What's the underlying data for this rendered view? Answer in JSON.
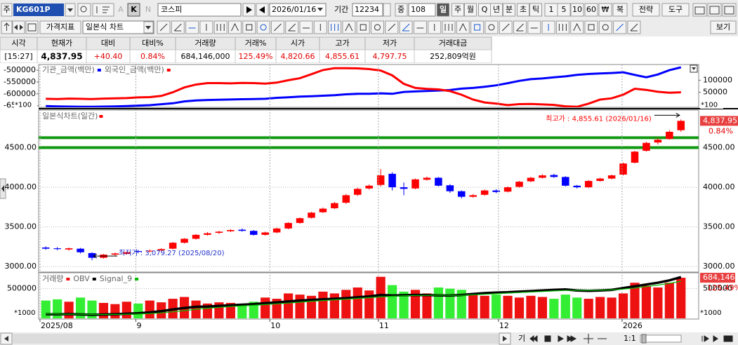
{
  "toolbar": {
    "symbol_prefix": "주",
    "symbol_code": "KG601P",
    "market_keys": [
      "A",
      "K",
      "N"
    ],
    "index_name": "코스피",
    "date": "2026/01/16",
    "period_label": "기간",
    "period_value": "12234",
    "overlap_label": "중",
    "overlap_value": "108",
    "intervals": [
      "일",
      "주",
      "월",
      "Q",
      "년",
      "분",
      "초",
      "틱",
      "1",
      "5",
      "10",
      "60"
    ],
    "buttons": [
      "₩",
      "복",
      "전략",
      "도구"
    ]
  },
  "toolbar2": {
    "indicator_button": "가격지표",
    "chart_type": "일본식 차트",
    "view_button": "보기"
  },
  "quote_table": {
    "headers": [
      "시각",
      "현재가",
      "대비",
      "대비%",
      "거래량",
      "거래%",
      "시가",
      "고가",
      "저가",
      "거래대금"
    ],
    "values": [
      "[15:27]",
      "4,837.95",
      "+40.40",
      "0.84%",
      "684,146,000",
      "125.49%",
      "4,820.66",
      "4,855.61",
      "4,797.75",
      "252,809억원"
    ]
  },
  "chart_data": [
    {
      "type": "line",
      "xlim": [
        0,
        56
      ],
      "ylim": [
        -657000,
        -476000
      ],
      "yticks": [
        -500000,
        -550000,
        -600000,
        -650000
      ],
      "y2lim": [
        -12000,
        165000
      ],
      "y2ticks": [
        50000,
        100000
      ],
      "unit_label": "*100",
      "grid": false,
      "series": [
        {
          "name": "기관_금액(백만)",
          "color": "#0000ff",
          "values": [
            -652000,
            -653000,
            -654000,
            -655000,
            -655000,
            -654000,
            -653000,
            -652000,
            -650000,
            -648000,
            -644000,
            -640000,
            -632000,
            -628000,
            -626000,
            -625000,
            -624000,
            -623000,
            -622000,
            -621000,
            -617000,
            -615000,
            -612000,
            -610000,
            -608000,
            -606000,
            -602000,
            -600000,
            -600000,
            -598000,
            -600000,
            -592000,
            -590000,
            -588000,
            -586000,
            -584000,
            -578000,
            -575000,
            -570000,
            -564000,
            -555000,
            -545000,
            -538000,
            -535000,
            -530000,
            -526000,
            -520000,
            -516000,
            -514000,
            -512000,
            -509000,
            -520000,
            -530000,
            -518000,
            -500000,
            -488000
          ]
        },
        {
          "name": "외국인_금액(백만)",
          "color": "#ff0000",
          "axis": "y2",
          "values": [
            23000,
            22000,
            24000,
            23000,
            22000,
            24000,
            25000,
            26000,
            29000,
            30000,
            35000,
            50000,
            70000,
            82000,
            88000,
            88000,
            87000,
            89000,
            88000,
            86000,
            90000,
            100000,
            108000,
            125000,
            142000,
            150000,
            150000,
            149000,
            146000,
            140000,
            120000,
            85000,
            68000,
            64000,
            62000,
            55000,
            40000,
            20000,
            8000,
            3000,
            -3000,
            1000,
            2000,
            0,
            -2000,
            -8000,
            -10000,
            3000,
            20000,
            25000,
            40000,
            65000,
            60000,
            52000,
            48000,
            50000
          ]
        }
      ]
    },
    {
      "type": "candlestick",
      "title": "일본식차트(일간)",
      "title_color": "#ff0000",
      "xlim": [
        0,
        56
      ],
      "ylim": [
        2930,
        4965
      ],
      "yticks": [
        {
          "value": 3000,
          "label": "3000.00"
        },
        {
          "value": 3500,
          "label": "3500.00"
        },
        {
          "value": 4000,
          "label": "4000.00"
        },
        {
          "value": 4500,
          "label": "4500.00"
        }
      ],
      "grid": true,
      "up_color": "#ff0000",
      "down_color": "#0000ff",
      "open": [
        3240,
        3230,
        3215,
        3225,
        3170,
        3110,
        3150,
        3160,
        3195,
        3190,
        3205,
        3225,
        3300,
        3350,
        3400,
        3425,
        3445,
        3465,
        3450,
        3400,
        3430,
        3480,
        3550,
        3615,
        3685,
        3735,
        3805,
        3905,
        3985,
        4030,
        4170,
        4000,
        3985,
        4095,
        4120,
        4025,
        3950,
        3880,
        3905,
        3960,
        3945,
        4005,
        4075,
        4120,
        4155,
        4130,
        4020,
        4000,
        4080,
        4110,
        4160,
        4310,
        4460,
        4565,
        4610,
        4720
      ],
      "high": [
        3255,
        3245,
        3240,
        3235,
        3180,
        3160,
        3175,
        3190,
        3210,
        3215,
        3230,
        3310,
        3360,
        3410,
        3435,
        3450,
        3470,
        3480,
        3460,
        3440,
        3490,
        3560,
        3620,
        3690,
        3745,
        3815,
        3915,
        3995,
        4035,
        4230,
        4190,
        4060,
        4110,
        4135,
        4130,
        4040,
        3960,
        3915,
        3970,
        3975,
        4010,
        4080,
        4130,
        4165,
        4170,
        4140,
        4030,
        4090,
        4120,
        4160,
        4310,
        4460,
        4575,
        4620,
        4720,
        4855.61
      ],
      "low": [
        3210,
        3205,
        3200,
        3165,
        3079.27,
        3100,
        3135,
        3150,
        3170,
        3180,
        3195,
        3215,
        3290,
        3340,
        3390,
        3410,
        3435,
        3440,
        3390,
        3390,
        3420,
        3470,
        3540,
        3605,
        3675,
        3725,
        3790,
        3890,
        3970,
        4010,
        3960,
        3900,
        3975,
        4085,
        4010,
        3930,
        3860,
        3870,
        3895,
        3925,
        3935,
        3995,
        4065,
        4110,
        4120,
        4010,
        3985,
        3990,
        4070,
        4100,
        4150,
        4300,
        4450,
        4540,
        4600,
        4700
      ],
      "close": [
        3225,
        3220,
        3230,
        3180,
        3110,
        3150,
        3165,
        3180,
        3185,
        3200,
        3220,
        3300,
        3350,
        3400,
        3420,
        3440,
        3460,
        3450,
        3400,
        3430,
        3480,
        3550,
        3610,
        3680,
        3730,
        3800,
        3900,
        3980,
        4020,
        4150,
        4000,
        3980,
        4100,
        4120,
        4020,
        3950,
        3880,
        3900,
        3960,
        3940,
        4000,
        4070,
        4120,
        4150,
        4130,
        4020,
        4000,
        4080,
        4110,
        4150,
        4300,
        4450,
        4560,
        4600,
        4700,
        4837.95
      ],
      "hlines": [
        4625,
        4500
      ],
      "hline_color": "#119911",
      "annotations": [
        "최고가 : 4,855.61 (2026/01/16)",
        "최저가 : 3,079.27 (2025/08/20)"
      ],
      "annotation_color": "#ff0000",
      "annotation_low_color": "#2233cc",
      "last_label": "4,837.95",
      "change_label": "0.84%"
    },
    {
      "type": "bar",
      "xlim": [
        0,
        56
      ],
      "ylim": [
        0,
        756000
      ],
      "yticks": [
        500000
      ],
      "unit_label": "*1000",
      "grid": true,
      "xticks": [
        {
          "value": 0,
          "label": "2025/08"
        },
        {
          "value": 8.3,
          "label": "9"
        },
        {
          "value": 19.9,
          "label": "10"
        },
        {
          "value": 29.3,
          "label": "11"
        },
        {
          "value": 39.7,
          "label": "12"
        },
        {
          "value": 50.4,
          "label": "2026"
        }
      ],
      "series": [
        {
          "name": "거래량",
          "color": "#ee1111",
          "down_color": "#33ee33",
          "values": [
            300000,
            320000,
            280000,
            350000,
            300000,
            260000,
            240000,
            280000,
            250000,
            300000,
            270000,
            330000,
            360000,
            300000,
            250000,
            270000,
            260000,
            240000,
            280000,
            350000,
            330000,
            420000,
            400000,
            380000,
            450000,
            420000,
            480000,
            520000,
            470000,
            700000,
            560000,
            450000,
            480000,
            420000,
            520000,
            500000,
            480000,
            420000,
            380000,
            400000,
            380000,
            350000,
            380000,
            360000,
            330000,
            400000,
            350000,
            330000,
            360000,
            350000,
            420000,
            600000,
            550000,
            520000,
            600000,
            684146
          ]
        },
        {
          "name": "OBV",
          "type": "line",
          "color": "#000000",
          "values": [
            70000,
            68000,
            72000,
            66000,
            60000,
            65000,
            70000,
            78000,
            85000,
            100000,
            120000,
            150000,
            175000,
            195000,
            200000,
            210000,
            220000,
            230000,
            240000,
            255000,
            268000,
            285000,
            300000,
            310000,
            320000,
            329000,
            340000,
            355000,
            370000,
            395000,
            385000,
            390000,
            395000,
            392000,
            388000,
            385000,
            395000,
            410000,
            425000,
            435000,
            440000,
            450000,
            460000,
            470000,
            480000,
            488000,
            470000,
            463000,
            470000,
            480000,
            510000,
            540000,
            570000,
            600000,
            640000,
            695000
          ]
        },
        {
          "name": "Signal_9",
          "type": "line",
          "color": "#00bb00",
          "values": [
            75000,
            72000,
            70000,
            68000,
            66000,
            65000,
            66000,
            68000,
            72000,
            80000,
            92000,
            110000,
            130000,
            152000,
            170000,
            185000,
            198000,
            210000,
            220000,
            232000,
            245000,
            258000,
            272000,
            288000,
            300000,
            312000,
            322000,
            335000,
            348000,
            362000,
            372000,
            380000,
            386000,
            388000,
            390000,
            389000,
            390000,
            396000,
            405000,
            415000,
            425000,
            435000,
            443000,
            452000,
            462000,
            470000,
            472000,
            472000,
            474000,
            480000,
            492000,
            510000,
            535000,
            560000,
            590000,
            625000
          ]
        }
      ],
      "last_label": "684,146",
      "ratio_label": "125.49%"
    }
  ],
  "scrollbar": {
    "left_label": "기",
    "zoom_label": "1:1"
  }
}
